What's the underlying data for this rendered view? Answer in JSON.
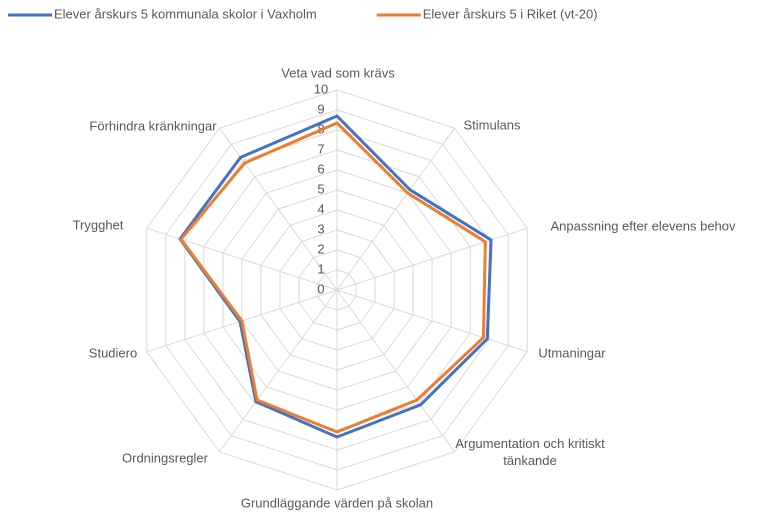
{
  "chart_data": {
    "type": "radar",
    "categories": [
      "Veta vad som krävs",
      "Stimulans",
      "Anpassning efter elevens behov",
      "Utmaningar",
      "Argumentation och kritiskt tänkande",
      "Grundläggande värden på skolan",
      "Ordningsregler",
      "Studiero",
      "Trygghet",
      "Förhindra kränkningar"
    ],
    "series": [
      {
        "name": "Elever årskurs 5 kommunala skolor i Vaxholm",
        "color": "#4472c4",
        "values": [
          8.7,
          6.2,
          8.1,
          7.9,
          7.1,
          7.35,
          6.9,
          5.1,
          8.25,
          8.2
        ]
      },
      {
        "name": "Elever årskurs 5 i Riket (vt-20)",
        "color": "#ed7d31",
        "values": [
          8.35,
          6.0,
          7.8,
          7.7,
          6.8,
          7.1,
          6.8,
          5.0,
          8.2,
          7.85
        ]
      }
    ],
    "ylim": [
      0,
      10
    ],
    "yticks": [
      0,
      1,
      2,
      3,
      4,
      5,
      6,
      7,
      8,
      9,
      10
    ],
    "grid": true,
    "legend": "top"
  }
}
